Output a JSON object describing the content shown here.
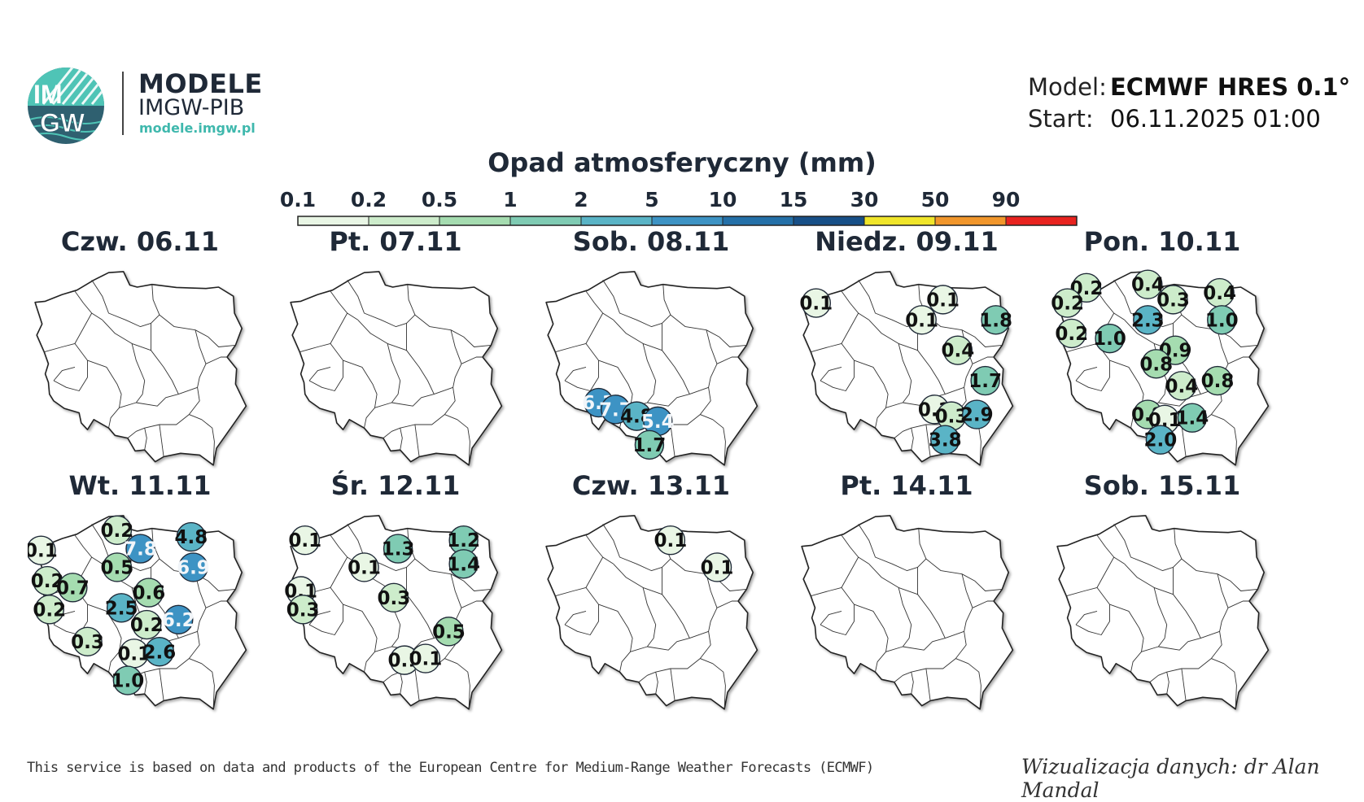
{
  "header": {
    "logo_text_top": "IM",
    "logo_text_bottom": "GW",
    "brand_title": "MODELE",
    "brand_subtitle": "IMGW-PIB",
    "brand_url": "modele.imgw.pl",
    "model_label": "Model:",
    "model_value": "ECMWF HRES 0.1°",
    "start_label": "Start:",
    "start_value": "06.11.2025 01:00"
  },
  "legend": {
    "title": "Opad atmosferyczny (mm)",
    "ticks": [
      "0.1",
      "0.2",
      "0.5",
      "1",
      "2",
      "5",
      "10",
      "15",
      "30",
      "50",
      "90"
    ],
    "colors": [
      "#e9f6e5",
      "#cdeccb",
      "#a5dcb0",
      "#7fcbb3",
      "#5ab4c6",
      "#3d93c4",
      "#2470a8",
      "#174f87",
      "#f0e52a",
      "#f1962b",
      "#e8231f"
    ]
  },
  "days": [
    {
      "label": "Czw. 06.11",
      "markers": []
    },
    {
      "label": "Pt. 07.11",
      "markers": []
    },
    {
      "label": "Sob. 08.11",
      "markers": [
        {
          "value": 6.3,
          "lon": 16.6,
          "lat": 50.95
        },
        {
          "value": 7.7,
          "lon": 17.4,
          "lat": 50.75
        },
        {
          "value": 4.8,
          "lon": 18.4,
          "lat": 50.55
        },
        {
          "value": 5.4,
          "lon": 19.4,
          "lat": 50.4
        },
        {
          "value": 1.7,
          "lon": 19.0,
          "lat": 49.7
        }
      ]
    },
    {
      "label": "Niedz. 09.11",
      "markers": [
        {
          "value": 0.1,
          "lon": 14.8,
          "lat": 53.9
        },
        {
          "value": 0.1,
          "lon": 20.8,
          "lat": 54.0
        },
        {
          "value": 0.1,
          "lon": 19.8,
          "lat": 53.4
        },
        {
          "value": 1.8,
          "lon": 23.3,
          "lat": 53.4
        },
        {
          "value": 0.4,
          "lon": 21.5,
          "lat": 52.5
        },
        {
          "value": 1.7,
          "lon": 22.8,
          "lat": 51.6
        },
        {
          "value": 0.1,
          "lon": 20.4,
          "lat": 50.75
        },
        {
          "value": 0.3,
          "lon": 21.2,
          "lat": 50.55
        },
        {
          "value": 2.9,
          "lon": 22.4,
          "lat": 50.6
        },
        {
          "value": 3.8,
          "lon": 20.9,
          "lat": 49.85
        }
      ]
    },
    {
      "label": "Pon. 10.11",
      "markers": [
        {
          "value": 0.2,
          "lon": 15.5,
          "lat": 54.35
        },
        {
          "value": 0.4,
          "lon": 18.4,
          "lat": 54.45
        },
        {
          "value": 0.3,
          "lon": 19.6,
          "lat": 54.0
        },
        {
          "value": 0.4,
          "lon": 21.8,
          "lat": 54.2
        },
        {
          "value": 0.2,
          "lon": 14.6,
          "lat": 53.9
        },
        {
          "value": 2.3,
          "lon": 18.4,
          "lat": 53.4
        },
        {
          "value": 1.0,
          "lon": 21.9,
          "lat": 53.4
        },
        {
          "value": 0.2,
          "lon": 14.8,
          "lat": 53.0
        },
        {
          "value": 1.0,
          "lon": 16.6,
          "lat": 52.85
        },
        {
          "value": 0.9,
          "lon": 19.7,
          "lat": 52.5
        },
        {
          "value": 0.8,
          "lon": 18.8,
          "lat": 52.1
        },
        {
          "value": 0.8,
          "lon": 21.7,
          "lat": 51.6
        },
        {
          "value": 0.4,
          "lon": 20.0,
          "lat": 51.45
        },
        {
          "value": 0.8,
          "lon": 18.4,
          "lat": 50.6
        },
        {
          "value": 0.1,
          "lon": 19.2,
          "lat": 50.45
        },
        {
          "value": 1.4,
          "lon": 20.5,
          "lat": 50.5
        },
        {
          "value": 2.0,
          "lon": 19.0,
          "lat": 49.85
        }
      ]
    },
    {
      "label": "Wt. 11.11",
      "markers": [
        {
          "value": 0.1,
          "lon": 14.4,
          "lat": 53.8
        },
        {
          "value": 0.2,
          "lon": 18.0,
          "lat": 54.4
        },
        {
          "value": 7.8,
          "lon": 19.1,
          "lat": 53.85
        },
        {
          "value": 4.8,
          "lon": 21.5,
          "lat": 54.2
        },
        {
          "value": 0.5,
          "lon": 18.0,
          "lat": 53.3
        },
        {
          "value": 6.9,
          "lon": 21.6,
          "lat": 53.3
        },
        {
          "value": 0.2,
          "lon": 14.7,
          "lat": 52.9
        },
        {
          "value": 0.7,
          "lon": 15.9,
          "lat": 52.7
        },
        {
          "value": 0.6,
          "lon": 19.5,
          "lat": 52.55
        },
        {
          "value": 0.2,
          "lon": 14.8,
          "lat": 52.05
        },
        {
          "value": 2.5,
          "lon": 18.2,
          "lat": 52.1
        },
        {
          "value": 0.2,
          "lon": 19.4,
          "lat": 51.6
        },
        {
          "value": 6.2,
          "lon": 20.9,
          "lat": 51.75
        },
        {
          "value": 0.3,
          "lon": 16.6,
          "lat": 51.1
        },
        {
          "value": 0.1,
          "lon": 18.8,
          "lat": 50.75
        },
        {
          "value": 2.6,
          "lon": 20.0,
          "lat": 50.8
        },
        {
          "value": 1.0,
          "lon": 18.5,
          "lat": 49.95
        }
      ]
    },
    {
      "label": "Śr. 12.11",
      "markers": [
        {
          "value": 0.1,
          "lon": 14.8,
          "lat": 54.1
        },
        {
          "value": 1.3,
          "lon": 19.2,
          "lat": 53.85
        },
        {
          "value": 1.2,
          "lon": 22.3,
          "lat": 54.1
        },
        {
          "value": 0.1,
          "lon": 17.6,
          "lat": 53.3
        },
        {
          "value": 1.4,
          "lon": 22.3,
          "lat": 53.4
        },
        {
          "value": 0.1,
          "lon": 14.6,
          "lat": 52.6
        },
        {
          "value": 0.3,
          "lon": 19.0,
          "lat": 52.4
        },
        {
          "value": 0.3,
          "lon": 14.7,
          "lat": 52.05
        },
        {
          "value": 0.5,
          "lon": 21.6,
          "lat": 51.4
        },
        {
          "value": 0.1,
          "lon": 19.5,
          "lat": 50.55
        },
        {
          "value": 0.1,
          "lon": 20.5,
          "lat": 50.6
        }
      ]
    },
    {
      "label": "Czw. 13.11",
      "markers": [
        {
          "value": 0.1,
          "lon": 20.0,
          "lat": 54.1
        },
        {
          "value": 0.1,
          "lon": 22.2,
          "lat": 53.3
        }
      ]
    },
    {
      "label": "Pt. 14.11",
      "markers": []
    },
    {
      "label": "Sob. 15.11",
      "markers": []
    }
  ],
  "footer": {
    "left": "This service is based on data and products of the European Centre for Medium-Range Weather Forecasts (ECMWF)",
    "right": "Wizualizacja danych: dr Alan Mandal"
  }
}
